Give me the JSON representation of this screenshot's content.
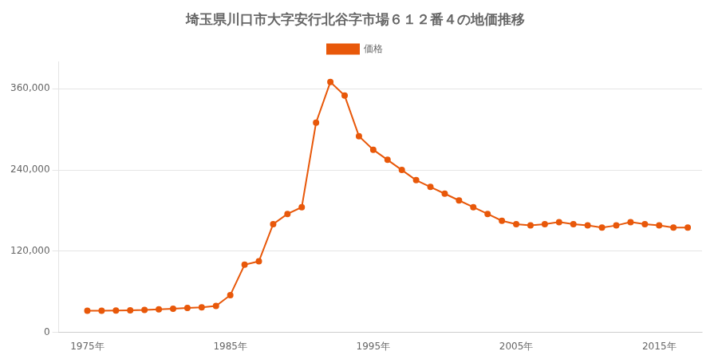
{
  "chart_data": {
    "type": "line",
    "title": "埼玉県川口市大字安行北谷字市場６１２番４の地価推移",
    "x": [
      1975,
      1976,
      1977,
      1978,
      1979,
      1980,
      1981,
      1982,
      1983,
      1984,
      1985,
      1986,
      1987,
      1988,
      1989,
      1990,
      1991,
      1992,
      1993,
      1994,
      1995,
      1996,
      1997,
      1998,
      1999,
      2000,
      2001,
      2002,
      2003,
      2004,
      2005,
      2006,
      2007,
      2008,
      2009,
      2010,
      2011,
      2012,
      2013,
      2014,
      2015,
      2016,
      2017
    ],
    "series": [
      {
        "name": "価格",
        "color": "#e8580a",
        "marker": "circle",
        "values": [
          32000,
          32000,
          32200,
          32500,
          33000,
          34000,
          35000,
          36000,
          37000,
          39000,
          55000,
          100000,
          105000,
          160000,
          175000,
          185000,
          310000,
          370000,
          350000,
          290000,
          270000,
          255000,
          240000,
          225000,
          215000,
          205000,
          195000,
          185000,
          175000,
          165000,
          160000,
          158000,
          160000,
          163000,
          160000,
          158000,
          155000,
          158000,
          163000,
          160000,
          158000,
          155000,
          155000
        ]
      }
    ],
    "xlim": [
      1973,
      2018
    ],
    "xticks": [
      {
        "value": 1975,
        "label": "1975年"
      },
      {
        "value": 1985,
        "label": "1985年"
      },
      {
        "value": 1995,
        "label": "1995年"
      },
      {
        "value": 2005,
        "label": "2005年"
      },
      {
        "value": 2015,
        "label": "2015年"
      }
    ],
    "ylim": [
      0,
      400000
    ],
    "yticks": [
      0,
      {
        "value": 120000,
        "label": "120,000"
      },
      {
        "value": 240000,
        "label": "240,000"
      },
      {
        "value": 360000,
        "label": "360,000"
      }
    ],
    "grid": "y",
    "legend": "top"
  }
}
